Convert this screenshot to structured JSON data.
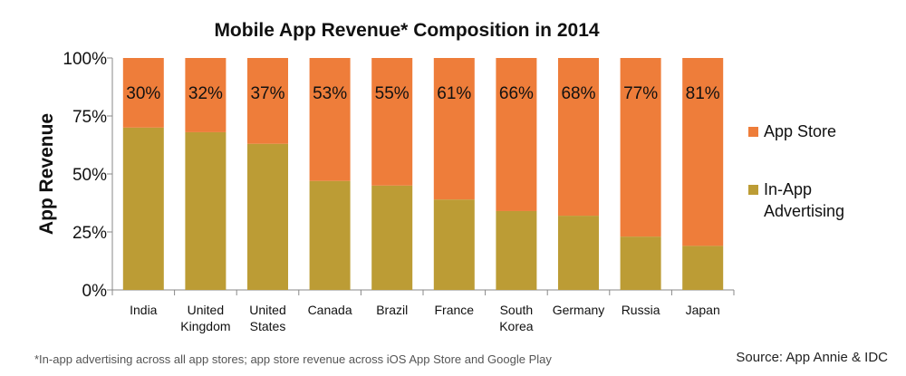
{
  "chart_data": {
    "type": "bar",
    "stacked": true,
    "normalized": true,
    "title": "Mobile App Revenue* Composition in 2014",
    "xlabel": "",
    "ylabel": "App Revenue",
    "ylim": [
      0,
      100
    ],
    "yticks": [
      "0%",
      "25%",
      "50%",
      "75%",
      "100%"
    ],
    "ytick_values": [
      0,
      25,
      50,
      75,
      100
    ],
    "categories": [
      [
        "India"
      ],
      [
        "United",
        "Kingdom"
      ],
      [
        "United",
        "States"
      ],
      [
        "Canada"
      ],
      [
        "Brazil"
      ],
      [
        "France"
      ],
      [
        "South",
        "Korea"
      ],
      [
        "Germany"
      ],
      [
        "Russia"
      ],
      [
        "Japan"
      ]
    ],
    "series": [
      {
        "name": "In-App Advertising",
        "legend_lines": [
          "In-App",
          "Advertising"
        ],
        "color": "#bc9c35",
        "values": [
          70,
          68,
          63,
          47,
          45,
          39,
          34,
          32,
          23,
          19
        ]
      },
      {
        "name": "App Store",
        "legend_lines": [
          "App Store"
        ],
        "color": "#ee7d3a",
        "values": [
          30,
          32,
          37,
          53,
          55,
          61,
          66,
          68,
          77,
          81
        ],
        "labels": [
          "30%",
          "32%",
          "37%",
          "53%",
          "55%",
          "61%",
          "66%",
          "68%",
          "77%",
          "81%"
        ]
      }
    ],
    "legend_position": "right",
    "footnote": "*In-app advertising across all app stores; app store revenue across iOS App Store and Google Play",
    "source": "Source: App Annie & IDC"
  }
}
